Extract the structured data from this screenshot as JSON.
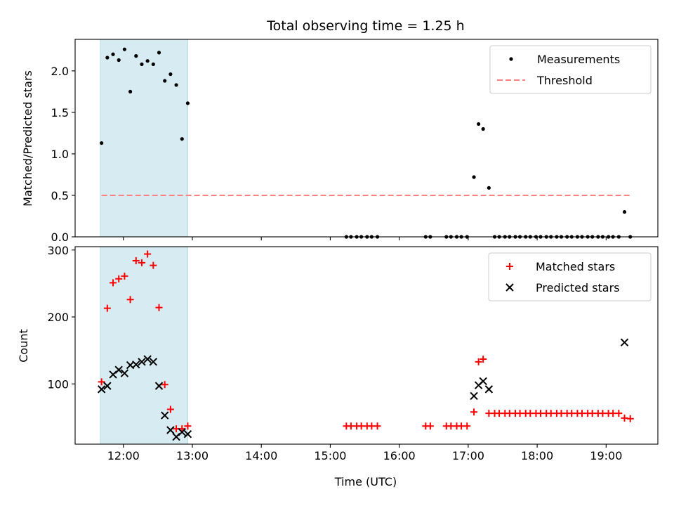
{
  "chart_data": [
    {
      "type": "scatter",
      "title": "Total observing time = 1.25 h",
      "xlabel": "",
      "ylabel": "Matched/Predicted stars",
      "xlim": [
        "11:18",
        "19:45"
      ],
      "ylim": [
        0,
        2.38
      ],
      "x_ticks": [
        "12:00",
        "13:00",
        "14:00",
        "15:00",
        "16:00",
        "17:00",
        "18:00",
        "19:00"
      ],
      "y_ticks": [
        "0.0",
        "0.5",
        "1.0",
        "1.5",
        "2.0"
      ],
      "x_tick_labels_visible": false,
      "shaded_span": [
        "11:40",
        "12:56"
      ],
      "shaded_color": "#add8e6",
      "legend_position": "upper right",
      "series": [
        {
          "name": "Measurements",
          "marker": "dot",
          "color": "#000000",
          "x": [
            "11:41",
            "11:46",
            "11:51",
            "11:56",
            "12:01",
            "12:06",
            "12:11",
            "12:16",
            "12:21",
            "12:26",
            "12:31",
            "12:36",
            "12:41",
            "12:46",
            "12:51",
            "12:56",
            "15:14",
            "15:18",
            "15:23",
            "15:27",
            "15:32",
            "15:36",
            "15:41",
            "16:23",
            "16:27",
            "16:41",
            "16:45",
            "16:50",
            "16:54",
            "16:59",
            "17:05",
            "17:09",
            "17:13",
            "17:18",
            "17:23",
            "17:27",
            "17:32",
            "17:36",
            "17:41",
            "17:45",
            "17:50",
            "17:54",
            "17:59",
            "18:03",
            "18:08",
            "18:12",
            "18:17",
            "18:21",
            "18:26",
            "18:30",
            "18:35",
            "18:39",
            "18:44",
            "18:48",
            "18:53",
            "18:57",
            "19:02",
            "19:06",
            "19:11",
            "19:16",
            "19:21"
          ],
          "y": [
            1.13,
            2.16,
            2.2,
            2.13,
            2.26,
            1.75,
            2.18,
            2.08,
            2.12,
            2.08,
            2.22,
            1.88,
            1.96,
            1.83,
            1.18,
            1.61,
            0,
            0,
            0,
            0,
            0,
            0,
            0,
            0,
            0,
            0,
            0,
            0,
            0,
            0,
            0.72,
            1.36,
            1.3,
            0.59,
            0,
            0,
            0,
            0,
            0,
            0,
            0,
            0,
            0,
            0,
            0,
            0,
            0,
            0,
            0,
            0,
            0,
            0,
            0,
            0,
            0,
            0,
            0,
            0,
            0,
            0.3,
            0
          ]
        },
        {
          "name": "Threshold",
          "marker": "dashed-line",
          "color": "#ff8080",
          "x": [
            "11:41",
            "19:21"
          ],
          "y": [
            0.5,
            0.5
          ]
        }
      ]
    },
    {
      "type": "scatter",
      "title": "",
      "xlabel": "Time (UTC)",
      "ylabel": "Count",
      "xlim": [
        "11:18",
        "19:45"
      ],
      "ylim": [
        10,
        305
      ],
      "x_ticks": [
        "12:00",
        "13:00",
        "14:00",
        "15:00",
        "16:00",
        "17:00",
        "18:00",
        "19:00"
      ],
      "y_ticks": [
        "100",
        "200",
        "300"
      ],
      "shaded_span": [
        "11:40",
        "12:56"
      ],
      "shaded_color": "#add8e6",
      "legend_position": "upper right",
      "series": [
        {
          "name": "Matched stars",
          "marker": "plus",
          "color": "#ff0000",
          "x": [
            "11:41",
            "11:46",
            "11:51",
            "11:56",
            "12:01",
            "12:06",
            "12:11",
            "12:16",
            "12:21",
            "12:26",
            "12:31",
            "12:36",
            "12:41",
            "12:46",
            "12:51",
            "12:56",
            "15:14",
            "15:18",
            "15:23",
            "15:27",
            "15:32",
            "15:36",
            "15:41",
            "16:23",
            "16:27",
            "16:41",
            "16:45",
            "16:50",
            "16:54",
            "16:59",
            "17:05",
            "17:09",
            "17:13",
            "17:18",
            "17:23",
            "17:27",
            "17:32",
            "17:36",
            "17:41",
            "17:45",
            "17:50",
            "17:54",
            "17:59",
            "18:03",
            "18:08",
            "18:12",
            "18:17",
            "18:21",
            "18:26",
            "18:30",
            "18:35",
            "18:39",
            "18:44",
            "18:48",
            "18:53",
            "18:57",
            "19:02",
            "19:06",
            "19:11",
            "19:16",
            "19:21"
          ],
          "y": [
            103,
            213,
            251,
            257,
            261,
            226,
            284,
            281,
            294,
            277,
            214,
            99,
            62,
            33,
            33,
            37,
            37,
            37,
            37,
            37,
            37,
            37,
            37,
            37,
            37,
            37,
            37,
            37,
            37,
            37,
            58,
            133,
            137,
            56,
            56,
            56,
            56,
            56,
            56,
            56,
            56,
            56,
            56,
            56,
            56,
            56,
            56,
            56,
            56,
            56,
            56,
            56,
            56,
            56,
            56,
            56,
            56,
            56,
            56,
            49,
            48
          ]
        },
        {
          "name": "Predicted stars",
          "marker": "x",
          "color": "#000000",
          "x": [
            "11:41",
            "11:46",
            "11:51",
            "11:56",
            "12:01",
            "12:06",
            "12:11",
            "12:16",
            "12:21",
            "12:26",
            "12:31",
            "12:36",
            "12:41",
            "12:46",
            "12:51",
            "12:56",
            "17:05",
            "17:09",
            "17:13",
            "17:18",
            "19:16"
          ],
          "y": [
            92,
            97,
            114,
            121,
            116,
            128,
            129,
            133,
            137,
            133,
            97,
            53,
            31,
            21,
            28,
            25,
            82,
            98,
            104,
            92,
            162
          ]
        }
      ]
    }
  ]
}
